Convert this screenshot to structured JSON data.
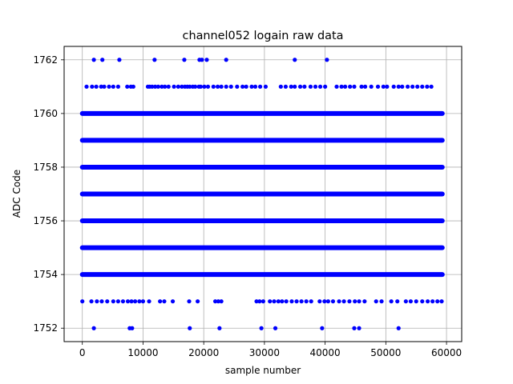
{
  "chart_data": {
    "type": "scatter",
    "title": "channel052 logain raw data",
    "xlabel": "sample number",
    "ylabel": "ADC Code",
    "xlim": [
      -3000,
      62500
    ],
    "ylim": [
      1751.5,
      1762.5
    ],
    "xticks": [
      0,
      10000,
      20000,
      30000,
      40000,
      50000,
      60000
    ],
    "yticks": [
      1752,
      1754,
      1756,
      1758,
      1760,
      1762
    ],
    "grid": true,
    "marker_color": "#0000ff",
    "dense_levels": [
      {
        "y": 1754,
        "x_range": [
          0,
          59300
        ]
      },
      {
        "y": 1755,
        "x_range": [
          0,
          59300
        ]
      },
      {
        "y": 1756,
        "x_range": [
          0,
          59300
        ]
      },
      {
        "y": 1757,
        "x_range": [
          0,
          59300
        ]
      },
      {
        "y": 1758,
        "x_range": [
          0,
          59300
        ]
      },
      {
        "y": 1759,
        "x_range": [
          0,
          59300
        ]
      },
      {
        "y": 1760,
        "x_range": [
          0,
          59300
        ]
      }
    ],
    "sparse_points": [
      {
        "y": 1762,
        "x": [
          1900,
          3300,
          6100,
          11900,
          16800,
          19300,
          19700,
          20500,
          23700,
          35000,
          40300
        ]
      },
      {
        "y": 1761,
        "x": [
          700,
          1600,
          2300,
          3100,
          3600,
          4400,
          5100,
          5900,
          7400,
          8000,
          8400,
          10800,
          11100,
          11500,
          12000,
          12500,
          13100,
          13600,
          14200,
          15100,
          15800,
          16400,
          16900,
          17300,
          17700,
          18200,
          18600,
          19200,
          19500,
          20100,
          20700,
          21600,
          22300,
          22900,
          23700,
          24500,
          25500,
          26400,
          27000,
          27900,
          28500,
          29300,
          30200,
          32700,
          33500,
          34400,
          35000,
          35900,
          36600,
          37600,
          38400,
          39200,
          40000,
          41900,
          42700,
          43300,
          44100,
          44800,
          46000,
          46600,
          47600,
          48700,
          49600,
          50200,
          51300,
          52100,
          52700,
          53600,
          54400,
          55200,
          56000,
          56800,
          57500
        ]
      },
      {
        "y": 1753,
        "x": [
          0,
          1500,
          2400,
          3200,
          4100,
          5100,
          5900,
          6700,
          7500,
          8100,
          8700,
          9400,
          10000,
          11000,
          12800,
          13500,
          14900,
          17600,
          19000,
          21900,
          22400,
          22900,
          28700,
          29200,
          29800,
          30900,
          31600,
          32300,
          32900,
          33600,
          34500,
          35300,
          36100,
          36900,
          37700,
          39100,
          39900,
          40500,
          41300,
          42300,
          43100,
          44000,
          44900,
          45600,
          46500,
          48400,
          49300,
          50900,
          51900,
          53300,
          54100,
          55000,
          56000,
          56900,
          57700,
          58500,
          59200
        ]
      },
      {
        "y": 1752,
        "x": [
          1900,
          7800,
          8200,
          17700,
          22600,
          29500,
          31800,
          39500,
          44800,
          45600,
          52100
        ]
      }
    ]
  }
}
